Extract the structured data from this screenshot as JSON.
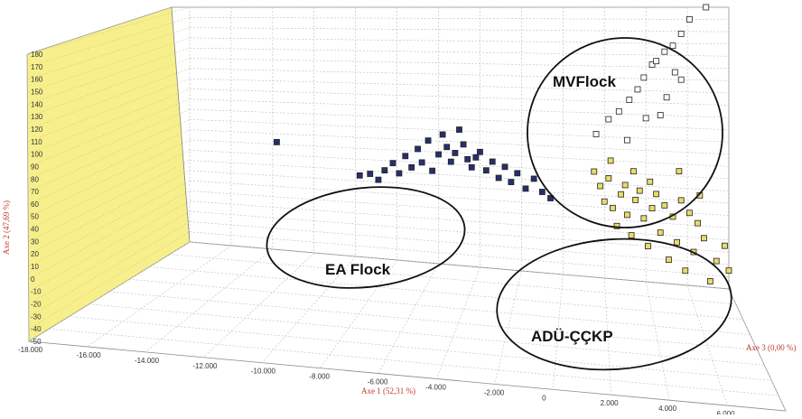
{
  "chart_data": {
    "type": "scatter",
    "title": "",
    "xlabel": "Axe 1 (52,31 %)",
    "ylabel": "Axe 2 (47,69 %)",
    "zlabel": "Axe 3 (0,00 %)",
    "xlim": [
      -18000,
      8000
    ],
    "ylim": [
      -50,
      180
    ],
    "grid": true,
    "x_ticks": [
      "-18.000",
      "-16.000",
      "-14.000",
      "-12.000",
      "-10.000",
      "-8.000",
      "-6.000",
      "-4.000",
      "-2.000",
      "0",
      "2.000",
      "4.000",
      "6.000",
      "8.000"
    ],
    "y_ticks": [
      "-50",
      "-40",
      "-30",
      "-20",
      "-10",
      "0",
      "10",
      "20",
      "30",
      "40",
      "50",
      "60",
      "70",
      "80",
      "90",
      "100",
      "110",
      "120",
      "130",
      "140",
      "150",
      "160",
      "170",
      "180"
    ],
    "clusters": [
      {
        "label": "EA Flock"
      },
      {
        "label": "MVFlock"
      },
      {
        "label": "ADÜ-ÇÇKP"
      }
    ],
    "series": [
      {
        "color": "#26306e",
        "points": [
          [
            -9800,
            25
          ],
          [
            -9300,
            27
          ],
          [
            -8900,
            22
          ],
          [
            -8600,
            31
          ],
          [
            -8200,
            38
          ],
          [
            -7900,
            29
          ],
          [
            -7600,
            45
          ],
          [
            -7300,
            35
          ],
          [
            -7000,
            52
          ],
          [
            -6800,
            40
          ],
          [
            -6500,
            60
          ],
          [
            -6300,
            33
          ],
          [
            -6000,
            48
          ],
          [
            -5800,
            66
          ],
          [
            -5600,
            55
          ],
          [
            -5400,
            42
          ],
          [
            -5200,
            50
          ],
          [
            -5000,
            71
          ],
          [
            -4800,
            58
          ],
          [
            -4600,
            45
          ],
          [
            -4400,
            38
          ],
          [
            -4200,
            47
          ],
          [
            -4000,
            52
          ],
          [
            -3700,
            36
          ],
          [
            -3400,
            44
          ],
          [
            -3100,
            30
          ],
          [
            -2800,
            40
          ],
          [
            -2500,
            27
          ],
          [
            -2200,
            35
          ],
          [
            -1800,
            22
          ],
          [
            -1400,
            31
          ],
          [
            -1000,
            20
          ],
          [
            -600,
            15
          ],
          [
            -13800,
            52
          ]
        ]
      },
      {
        "color": "#ffffff",
        "points": [
          [
            1600,
            72
          ],
          [
            2200,
            85
          ],
          [
            2700,
            92
          ],
          [
            3200,
            102
          ],
          [
            3600,
            111
          ],
          [
            3900,
            121
          ],
          [
            4300,
            132
          ],
          [
            4500,
            135
          ],
          [
            4900,
            143
          ],
          [
            5300,
            148
          ],
          [
            5700,
            158
          ],
          [
            6100,
            170
          ],
          [
            6900,
            180
          ],
          [
            4000,
            87
          ],
          [
            4700,
            90
          ],
          [
            5000,
            105
          ],
          [
            5400,
            126
          ],
          [
            5700,
            120
          ],
          [
            3100,
            68
          ]
        ]
      },
      {
        "color": "#e8dc6a",
        "points": [
          [
            1500,
            40
          ],
          [
            1800,
            28
          ],
          [
            2000,
            15
          ],
          [
            2200,
            35
          ],
          [
            2400,
            10
          ],
          [
            2600,
            -5
          ],
          [
            2800,
            22
          ],
          [
            3000,
            30
          ],
          [
            3100,
            5
          ],
          [
            3300,
            -12
          ],
          [
            3500,
            18
          ],
          [
            3700,
            26
          ],
          [
            3900,
            3
          ],
          [
            4100,
            -20
          ],
          [
            4300,
            12
          ],
          [
            4500,
            24
          ],
          [
            4700,
            -8
          ],
          [
            4900,
            15
          ],
          [
            5100,
            -30
          ],
          [
            5300,
            6
          ],
          [
            5500,
            -15
          ],
          [
            5700,
            20
          ],
          [
            5900,
            -38
          ],
          [
            6100,
            10
          ],
          [
            6300,
            -22
          ],
          [
            6500,
            2
          ],
          [
            6800,
            -10
          ],
          [
            7100,
            -45
          ],
          [
            7400,
            -28
          ],
          [
            7800,
            -15
          ],
          [
            8000,
            -35
          ],
          [
            2300,
            50
          ],
          [
            3400,
            42
          ],
          [
            4200,
            34
          ],
          [
            5600,
            44
          ],
          [
            6600,
            25
          ]
        ]
      }
    ]
  }
}
